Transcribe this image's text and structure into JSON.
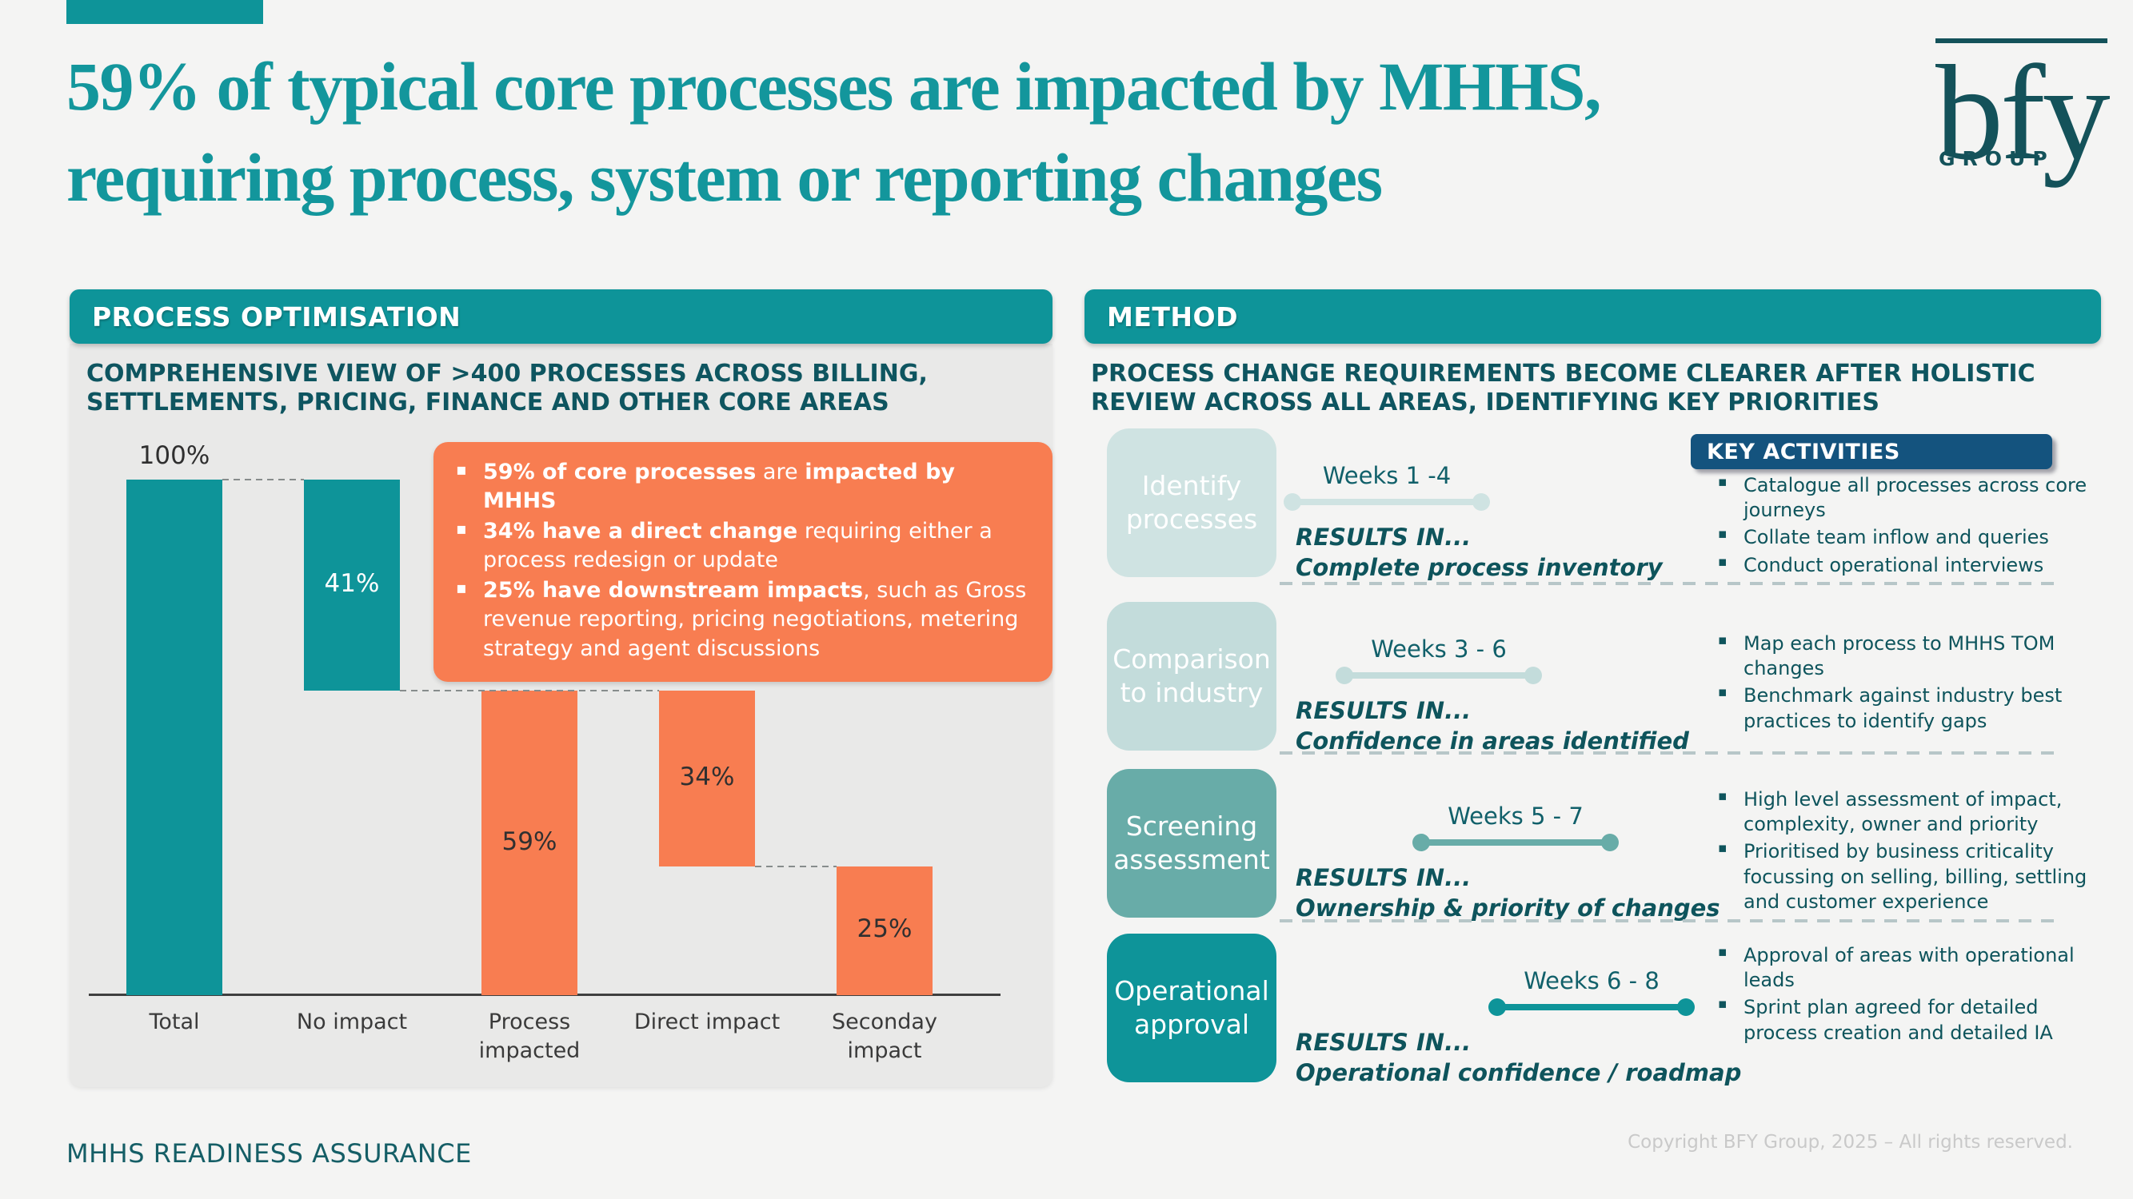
{
  "slide": {
    "title_line1": "59% of typical core processes are impacted by MHHS,",
    "title_line2": "requiring process, system or reporting changes",
    "footer_left": "MHHS READINESS ASSURANCE",
    "footer_right": "Copyright BFY Group, 2025 – All rights reserved.",
    "logo": {
      "text": "bfy",
      "subtext": "GROUP"
    }
  },
  "colors": {
    "teal": "#0e9499",
    "title_teal": "#13969c",
    "dark_teal_text": "#0e5560",
    "orange": "#f87d51",
    "panel_gray": "#e9e9e8",
    "page_background": "#f4f4f3",
    "key_activities_blue": "#14537e"
  },
  "left_panel": {
    "header": "PROCESS OPTIMISATION",
    "subtitle": "COMPREHENSIVE VIEW OF >400 PROCESSES ACROSS BILLING, SETTLEMENTS, PRICING, FINANCE AND OTHER CORE AREAS",
    "callout": {
      "items": [
        [
          {
            "text": "59% of core processes",
            "bold": true
          },
          {
            "text": " are ",
            "bold": false
          },
          {
            "text": "impacted by MHHS",
            "bold": true
          }
        ],
        [
          {
            "text": "34% have a direct change",
            "bold": true
          },
          {
            "text": " requiring either a process redesign or update",
            "bold": false
          }
        ],
        [
          {
            "text": "25% have downstream impacts",
            "bold": true
          },
          {
            "text": ", such as Gross revenue reporting, pricing negotiations, metering strategy and agent discussions",
            "bold": false
          }
        ]
      ]
    }
  },
  "chart_data": {
    "type": "bar",
    "subtype": "waterfall",
    "title": "",
    "xlabel": "",
    "ylabel": "",
    "ylim": [
      0,
      100
    ],
    "grid": false,
    "legend": "none",
    "categories": [
      "Total",
      "No impact",
      "Process impacted",
      "Direct impact",
      "Seconday impact"
    ],
    "bars": [
      {
        "category": "Total",
        "from": 0,
        "to": 100,
        "value_label": "100%",
        "color": "#0e9499",
        "label_position": "above",
        "label_color": "#2f2f2f"
      },
      {
        "category": "No impact",
        "from": 59,
        "to": 100,
        "value_label": "41%",
        "color": "#0e9499",
        "label_position": "inside",
        "label_color": "#ffffff"
      },
      {
        "category": "Process impacted",
        "from": 0,
        "to": 59,
        "value_label": "59%",
        "color": "#f87d51",
        "label_position": "inside",
        "label_color": "#303030"
      },
      {
        "category": "Direct impact",
        "from": 25,
        "to": 59,
        "value_label": "34%",
        "color": "#f87d51",
        "label_position": "inside",
        "label_color": "#303030"
      },
      {
        "category": "Seconday impact",
        "from": 0,
        "to": 25,
        "value_label": "25%",
        "color": "#f87d51",
        "label_position": "inside",
        "label_color": "#303030"
      }
    ],
    "connectors": [
      {
        "level": 100,
        "from_bar": 0,
        "to_bar": 1
      },
      {
        "level": 59,
        "from_bar": 1,
        "to_bar": 3
      },
      {
        "level": 25,
        "from_bar": 3,
        "to_bar": 4
      }
    ]
  },
  "right_panel": {
    "header": "METHOD",
    "subtitle": "PROCESS CHANGE REQUIREMENTS BECOME CLEARER AFTER HOLISTIC REVIEW ACROSS ALL AREAS, IDENTIFYING KEY PRIORITIES",
    "key_activities_label": "KEY ACTIVITIES",
    "rows": [
      {
        "step": "Identify processes",
        "color": "#cfe3e2",
        "weeks": "Weeks 1 -4",
        "results_label": "RESULTS IN...",
        "result": "Complete process inventory",
        "activities": [
          "Catalogue all processes across core journeys",
          "Collate team inflow and queries",
          "Conduct operational interviews"
        ]
      },
      {
        "step": "Comparison to industry",
        "color": "#c3dcdb",
        "weeks": "Weeks 3 - 6",
        "results_label": "RESULTS IN...",
        "result": "Confidence in areas identified",
        "activities": [
          "Map each process to MHHS TOM changes",
          "Benchmark against industry best practices to identify gaps"
        ]
      },
      {
        "step": "Screening assessment",
        "color": "#68aca8",
        "weeks": "Weeks 5 - 7",
        "results_label": "RESULTS IN...",
        "result": "Ownership & priority of changes",
        "activities": [
          "High level assessment of impact, complexity, owner and priority",
          "Prioritised by business criticality focussing on selling, billing, settling and customer experience"
        ]
      },
      {
        "step": "Operational approval",
        "color": "#0e9499",
        "weeks": "Weeks 6 - 8",
        "results_label": "RESULTS IN...",
        "result": "Operational confidence / roadmap",
        "activities": [
          "Approval of areas with operational leads",
          "Sprint plan agreed for detailed process creation and detailed IA"
        ]
      }
    ]
  }
}
